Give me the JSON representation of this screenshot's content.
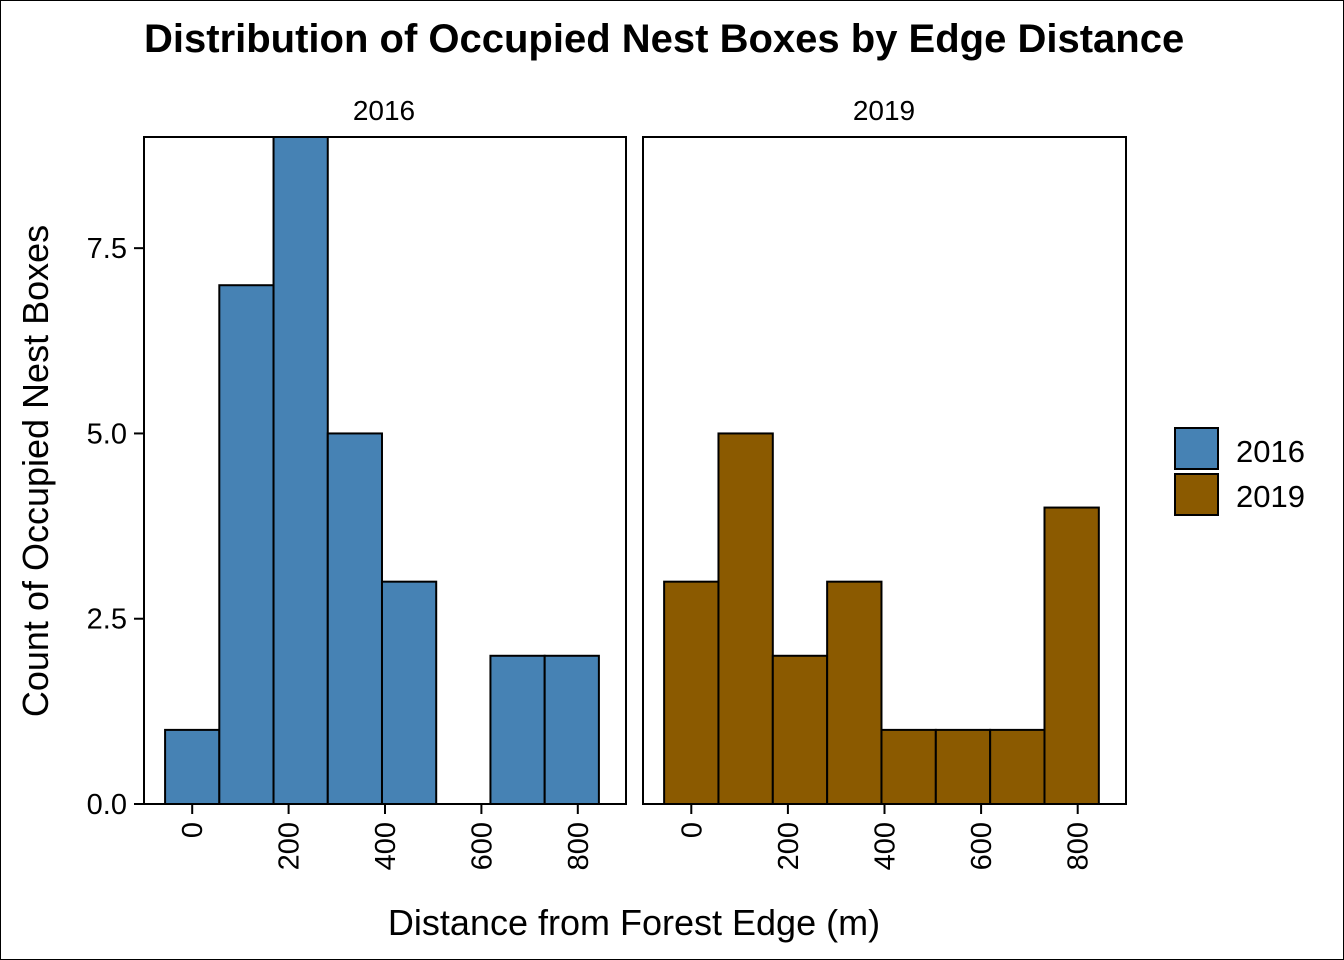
{
  "chart_data": {
    "type": "bar",
    "title": "Distribution of Occupied Nest Boxes by Edge Distance",
    "xlabel": "Distance from Forest Edge (m)",
    "ylabel": "Count of Occupied Nest Boxes",
    "xlim": [
      -100,
      900
    ],
    "ylim": [
      0,
      9
    ],
    "x_ticks": [
      "0",
      "200",
      "400",
      "600",
      "800"
    ],
    "x_tick_values": [
      0,
      200,
      400,
      600,
      800
    ],
    "y_ticks": [
      "0.0",
      "2.5",
      "5.0",
      "7.5"
    ],
    "y_tick_values": [
      0,
      2.5,
      5,
      7.5
    ],
    "bin_width": 112.5,
    "bin_centers": [
      0,
      112.5,
      225,
      337.5,
      450,
      562.5,
      675,
      787.5
    ],
    "grid": false,
    "legend_position": "right",
    "series": [
      {
        "name": "2016",
        "color": "#4682b4",
        "values": [
          1,
          7,
          9,
          5,
          3,
          0,
          2,
          2
        ]
      },
      {
        "name": "2019",
        "color": "#8b5a00",
        "values": [
          3,
          5,
          2,
          3,
          1,
          1,
          1,
          4
        ]
      }
    ]
  }
}
